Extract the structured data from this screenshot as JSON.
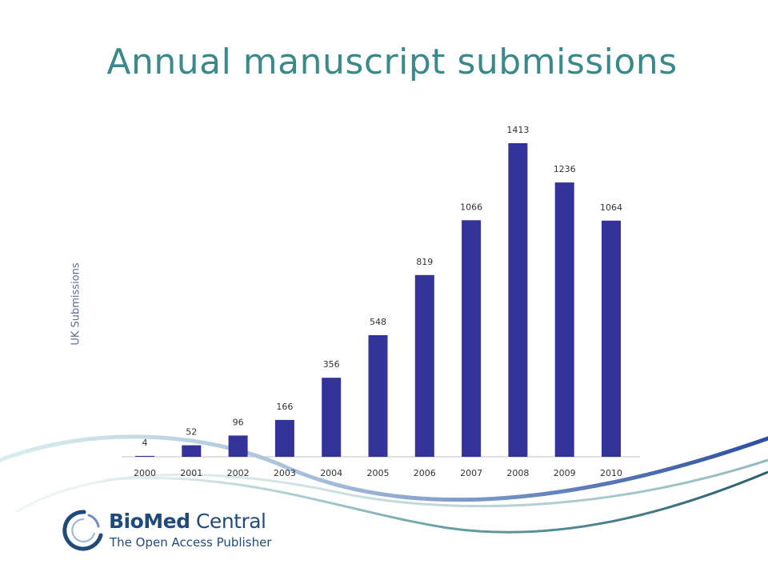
{
  "slide": {
    "title": "Annual manuscript submissions"
  },
  "chart_data": {
    "type": "bar",
    "title": "Annual manuscript submissions",
    "xlabel": "",
    "ylabel": "UK Submissions",
    "categories": [
      "2000",
      "2001",
      "2002",
      "2003",
      "2004",
      "2005",
      "2006",
      "2007",
      "2008",
      "2009",
      "2010"
    ],
    "values": [
      4,
      52,
      96,
      166,
      356,
      548,
      819,
      1066,
      1413,
      1236,
      1064
    ],
    "data_labels": [
      "4",
      "52",
      "96",
      "166",
      "356",
      "548",
      "819",
      "1066",
      "1413",
      "1236",
      "1064"
    ],
    "ylim": [
      0,
      1413
    ],
    "grid": false,
    "legend": "none",
    "bar_color": "#333399"
  },
  "logo": {
    "brand_bold": "BioMed",
    "brand_regular": "Central",
    "tagline": "The Open Access Publisher"
  },
  "colors": {
    "title": "#3a8a8c",
    "bar": "#333399",
    "brand": "#1f4a7a",
    "swoosh_teal": "#2e7a86",
    "swoosh_blue": "#2b4fa0"
  }
}
